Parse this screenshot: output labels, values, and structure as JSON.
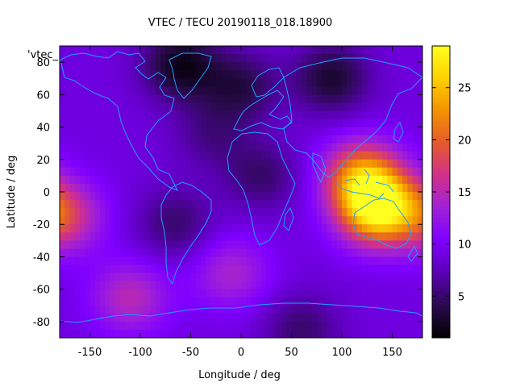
{
  "chart_data": {
    "type": "heatmap",
    "title": "VTEC / TECU 20190118_018.18900",
    "xlabel": "Longitude / deg",
    "ylabel": "Latitude / deg",
    "xlim": [
      -180,
      180
    ],
    "ylim": [
      -90,
      90
    ],
    "x_ticks": [
      -150,
      -100,
      -50,
      0,
      50,
      100,
      150
    ],
    "y_ticks": [
      -80,
      -60,
      -40,
      -20,
      0,
      20,
      40,
      60,
      80
    ],
    "corner_label": "'vtec_",
    "grid": false,
    "colorbar": {
      "range": [
        1,
        29
      ],
      "ticks": [
        5,
        10,
        15,
        20,
        25
      ],
      "colormap": [
        "#000000",
        "#2a0a4e",
        "#5a00b5",
        "#7f00ff",
        "#a020d8",
        "#d0308c",
        "#e35a2e",
        "#f39200",
        "#ffd000",
        "#ffff20"
      ]
    },
    "features": [
      {
        "name": "background",
        "value": 9
      },
      {
        "name": "arctic-low",
        "lon": -60,
        "lat": 78,
        "value": 2
      },
      {
        "name": "high-latitude-low",
        "lon": 0,
        "lat": 65,
        "value": 4
      },
      {
        "name": "siberia-low",
        "lon": 90,
        "lat": 70,
        "value": 3
      },
      {
        "name": "south-america-low",
        "lon": -65,
        "lat": -20,
        "value": 5
      },
      {
        "name": "africa-low",
        "lon": 20,
        "lat": 10,
        "value": 5
      },
      {
        "name": "north-atlantic-low",
        "lon": -30,
        "lat": 35,
        "value": 6
      },
      {
        "name": "australia-peak",
        "lon": 135,
        "lat": -10,
        "value": 28
      },
      {
        "name": "indonesia-high",
        "lon": 120,
        "lat": 10,
        "value": 21
      },
      {
        "name": "central-pacific-high",
        "lon": -175,
        "lat": -15,
        "value": 17
      },
      {
        "name": "south-pacific-high",
        "lon": -110,
        "lat": -65,
        "value": 15
      },
      {
        "name": "south-atlantic-high",
        "lon": -10,
        "lat": -50,
        "value": 14
      },
      {
        "name": "antarctic-low",
        "lon": 60,
        "lat": -85,
        "value": 5
      }
    ]
  }
}
